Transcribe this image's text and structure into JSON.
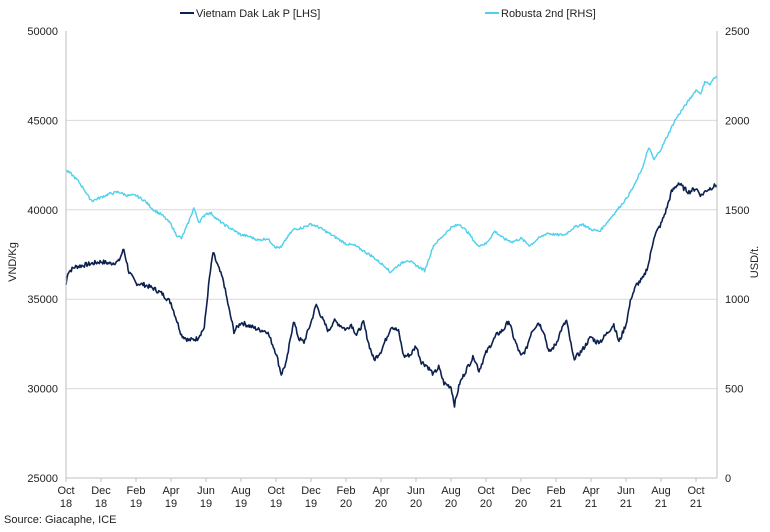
{
  "chart_data": {
    "type": "line",
    "title": "",
    "legend": [
      "Vietnam Dak Lak P [LHS]",
      "Robusta 2nd [RHS]"
    ],
    "legend_position": "top",
    "ylabel_left": "VND/Kg",
    "ylabel_right": "USD/t.",
    "ylim_left": [
      25000,
      50000
    ],
    "ylim_right": [
      0,
      2500
    ],
    "yticks_left": [
      "50000",
      "45000",
      "40000",
      "35000",
      "30000",
      "25000"
    ],
    "yticks_right": [
      "2500",
      "2000",
      "1500",
      "1000",
      "500",
      "0"
    ],
    "x_ticks": [
      {
        "month": 0,
        "top": "Oct",
        "bottom": "18"
      },
      {
        "month": 2,
        "top": "Dec",
        "bottom": "18"
      },
      {
        "month": 4,
        "top": "Feb",
        "bottom": "19"
      },
      {
        "month": 6,
        "top": "Apr",
        "bottom": "19"
      },
      {
        "month": 8,
        "top": "Jun",
        "bottom": "19"
      },
      {
        "month": 10,
        "top": "Aug",
        "bottom": "19"
      },
      {
        "month": 12,
        "top": "Oct",
        "bottom": "19"
      },
      {
        "month": 14,
        "top": "Dec",
        "bottom": "19"
      },
      {
        "month": 16,
        "top": "Feb",
        "bottom": "20"
      },
      {
        "month": 18,
        "top": "Apr",
        "bottom": "20"
      },
      {
        "month": 20,
        "top": "Jun",
        "bottom": "20"
      },
      {
        "month": 22,
        "top": "Aug",
        "bottom": "20"
      },
      {
        "month": 24,
        "top": "Oct",
        "bottom": "20"
      },
      {
        "month": 26,
        "top": "Dec",
        "bottom": "20"
      },
      {
        "month": 28,
        "top": "Feb",
        "bottom": "21"
      },
      {
        "month": 30,
        "top": "Apr",
        "bottom": "21"
      },
      {
        "month": 32,
        "top": "Jun",
        "bottom": "21"
      },
      {
        "month": 34,
        "top": "Aug",
        "bottom": "21"
      },
      {
        "month": 36,
        "top": "Oct",
        "bottom": "21"
      }
    ],
    "x_range_months": [
      0,
      37.2
    ],
    "series": [
      {
        "name": "Vietnam Dak Lak P [LHS]",
        "axis": "left",
        "color": "#0d2150",
        "points": [
          [
            0,
            35800
          ],
          [
            0.1,
            36500
          ],
          [
            0.5,
            36800
          ],
          [
            1,
            36900
          ],
          [
            1.5,
            37000
          ],
          [
            2,
            37100
          ],
          [
            2.5,
            37000
          ],
          [
            3,
            37100
          ],
          [
            3.3,
            37800
          ],
          [
            3.6,
            36500
          ],
          [
            4,
            35900
          ],
          [
            4.5,
            35800
          ],
          [
            5,
            35600
          ],
          [
            5.5,
            35300
          ],
          [
            6,
            34800
          ],
          [
            6.3,
            33900
          ],
          [
            6.6,
            33000
          ],
          [
            7,
            32700
          ],
          [
            7.5,
            32800
          ],
          [
            7.9,
            33400
          ],
          [
            8.2,
            36200
          ],
          [
            8.4,
            37600
          ],
          [
            8.7,
            36800
          ],
          [
            9,
            36000
          ],
          [
            9.3,
            34500
          ],
          [
            9.6,
            33200
          ],
          [
            10,
            33700
          ],
          [
            10.5,
            33500
          ],
          [
            11,
            33300
          ],
          [
            11.5,
            33200
          ],
          [
            12,
            32000
          ],
          [
            12.3,
            30800
          ],
          [
            12.6,
            31500
          ],
          [
            13,
            33800
          ],
          [
            13.3,
            32800
          ],
          [
            13.6,
            32600
          ],
          [
            14,
            33700
          ],
          [
            14.3,
            34700
          ],
          [
            14.6,
            34000
          ],
          [
            15,
            33200
          ],
          [
            15.3,
            33800
          ],
          [
            15.6,
            33600
          ],
          [
            16,
            33300
          ],
          [
            16.3,
            33600
          ],
          [
            16.6,
            33000
          ],
          [
            17,
            33700
          ],
          [
            17.3,
            32500
          ],
          [
            17.6,
            31600
          ],
          [
            18,
            32100
          ],
          [
            18.3,
            32800
          ],
          [
            18.6,
            33500
          ],
          [
            19,
            33200
          ],
          [
            19.3,
            31800
          ],
          [
            19.7,
            31900
          ],
          [
            20,
            32400
          ],
          [
            20.3,
            31500
          ],
          [
            20.6,
            31300
          ],
          [
            21,
            30800
          ],
          [
            21.3,
            31200
          ],
          [
            21.6,
            30300
          ],
          [
            22,
            30100
          ],
          [
            22.2,
            29100
          ],
          [
            22.5,
            30300
          ],
          [
            23,
            31300
          ],
          [
            23.3,
            31800
          ],
          [
            23.6,
            31000
          ],
          [
            24,
            32000
          ],
          [
            24.3,
            32500
          ],
          [
            24.6,
            33000
          ],
          [
            25,
            33300
          ],
          [
            25.3,
            33800
          ],
          [
            25.6,
            32800
          ],
          [
            26,
            31800
          ],
          [
            26.3,
            32200
          ],
          [
            26.6,
            33200
          ],
          [
            27,
            33700
          ],
          [
            27.3,
            33200
          ],
          [
            27.6,
            32000
          ],
          [
            28,
            32500
          ],
          [
            28.3,
            33300
          ],
          [
            28.6,
            33800
          ],
          [
            29,
            31700
          ],
          [
            29.3,
            31900
          ],
          [
            29.6,
            32300
          ],
          [
            30,
            32900
          ],
          [
            30.3,
            32600
          ],
          [
            30.6,
            32700
          ],
          [
            31,
            33200
          ],
          [
            31.3,
            33600
          ],
          [
            31.6,
            32600
          ],
          [
            32,
            33600
          ],
          [
            32.3,
            35100
          ],
          [
            32.6,
            35800
          ],
          [
            33,
            36200
          ],
          [
            33.3,
            37000
          ],
          [
            33.6,
            38500
          ],
          [
            34,
            39200
          ],
          [
            34.3,
            40000
          ],
          [
            34.6,
            41000
          ],
          [
            35,
            41500
          ],
          [
            35.3,
            41200
          ],
          [
            35.6,
            41000
          ],
          [
            36,
            41200
          ],
          [
            36.3,
            40800
          ],
          [
            36.6,
            41100
          ],
          [
            37,
            41300
          ],
          [
            37.2,
            41400
          ]
        ]
      },
      {
        "name": "Robusta 2nd [RHS]",
        "axis": "right",
        "color": "#4fd0ec",
        "points": [
          [
            0,
            1720
          ],
          [
            0.3,
            1700
          ],
          [
            0.7,
            1660
          ],
          [
            1,
            1620
          ],
          [
            1.3,
            1570
          ],
          [
            1.5,
            1550
          ],
          [
            2,
            1570
          ],
          [
            2.5,
            1590
          ],
          [
            3,
            1600
          ],
          [
            3.5,
            1580
          ],
          [
            4,
            1580
          ],
          [
            4.5,
            1550
          ],
          [
            5,
            1500
          ],
          [
            5.5,
            1470
          ],
          [
            6,
            1420
          ],
          [
            6.3,
            1360
          ],
          [
            6.6,
            1340
          ],
          [
            7,
            1430
          ],
          [
            7.3,
            1510
          ],
          [
            7.6,
            1430
          ],
          [
            8,
            1480
          ],
          [
            8.3,
            1480
          ],
          [
            8.6,
            1450
          ],
          [
            9,
            1420
          ],
          [
            9.5,
            1390
          ],
          [
            10,
            1360
          ],
          [
            10.5,
            1350
          ],
          [
            11,
            1330
          ],
          [
            11.5,
            1340
          ],
          [
            12,
            1290
          ],
          [
            12.3,
            1290
          ],
          [
            12.6,
            1340
          ],
          [
            13,
            1390
          ],
          [
            13.5,
            1400
          ],
          [
            14,
            1420
          ],
          [
            14.5,
            1400
          ],
          [
            15,
            1370
          ],
          [
            15.5,
            1340
          ],
          [
            16,
            1310
          ],
          [
            16.5,
            1300
          ],
          [
            17,
            1270
          ],
          [
            17.5,
            1240
          ],
          [
            18,
            1200
          ],
          [
            18.3,
            1180
          ],
          [
            18.5,
            1150
          ],
          [
            19,
            1190
          ],
          [
            19.5,
            1220
          ],
          [
            20,
            1190
          ],
          [
            20.5,
            1160
          ],
          [
            21,
            1300
          ],
          [
            21.5,
            1350
          ],
          [
            22,
            1400
          ],
          [
            22.5,
            1420
          ],
          [
            23,
            1370
          ],
          [
            23.5,
            1300
          ],
          [
            24,
            1310
          ],
          [
            24.5,
            1380
          ],
          [
            25,
            1340
          ],
          [
            25.5,
            1320
          ],
          [
            26,
            1340
          ],
          [
            26.5,
            1300
          ],
          [
            27,
            1340
          ],
          [
            27.5,
            1370
          ],
          [
            28,
            1360
          ],
          [
            28.5,
            1360
          ],
          [
            29,
            1400
          ],
          [
            29.5,
            1420
          ],
          [
            30,
            1390
          ],
          [
            30.5,
            1380
          ],
          [
            31,
            1440
          ],
          [
            31.5,
            1500
          ],
          [
            32,
            1560
          ],
          [
            32.5,
            1640
          ],
          [
            33,
            1750
          ],
          [
            33.3,
            1850
          ],
          [
            33.6,
            1780
          ],
          [
            34,
            1840
          ],
          [
            34.5,
            1940
          ],
          [
            34.8,
            2000
          ],
          [
            35,
            2030
          ],
          [
            35.5,
            2100
          ],
          [
            36,
            2170
          ],
          [
            36.3,
            2150
          ],
          [
            36.5,
            2220
          ],
          [
            36.8,
            2200
          ],
          [
            37,
            2230
          ],
          [
            37.2,
            2250
          ]
        ]
      }
    ]
  },
  "source": "Source: Giacaphe, ICE"
}
